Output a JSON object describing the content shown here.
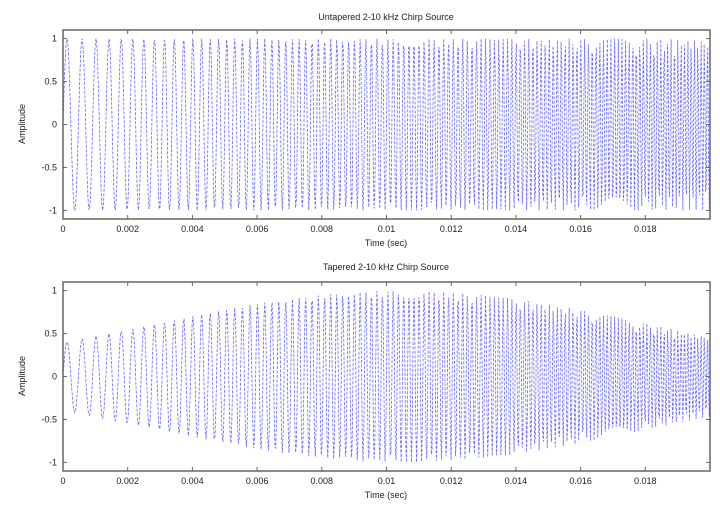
{
  "chart_data": [
    {
      "type": "line",
      "title": "Untapered 2-10 kHz Chirp Source",
      "xlabel": "Time (sec)",
      "ylabel": "Amplitude",
      "xlim": [
        0,
        0.02
      ],
      "ylim": [
        -1.1,
        1.1
      ],
      "xticks": [
        "0",
        "0.002",
        "0.004",
        "0.006",
        "0.008",
        "0.01",
        "0.012",
        "0.014",
        "0.016",
        "0.018"
      ],
      "yticks": [
        "-1",
        "-0.5",
        "0",
        "0.5",
        "1"
      ],
      "grid": false,
      "series": [
        {
          "f0_hz": 2000,
          "f1_hz": 10000,
          "tapered": false,
          "color": "#3333ff"
        }
      ]
    },
    {
      "type": "line",
      "title": "Tapered 2-10 kHz Chirp Source",
      "xlabel": "Time (sec)",
      "ylabel": "Amplitude",
      "xlim": [
        0,
        0.02
      ],
      "ylim": [
        -1.1,
        1.1
      ],
      "xticks": [
        "0",
        "0.002",
        "0.004",
        "0.006",
        "0.008",
        "0.01",
        "0.012",
        "0.014",
        "0.016",
        "0.018"
      ],
      "yticks": [
        "-1",
        "-0.5",
        "0",
        "0.5",
        "1"
      ],
      "grid": false,
      "series": [
        {
          "f0_hz": 2000,
          "f1_hz": 10000,
          "tapered": true,
          "color": "#3333ff"
        }
      ]
    }
  ]
}
